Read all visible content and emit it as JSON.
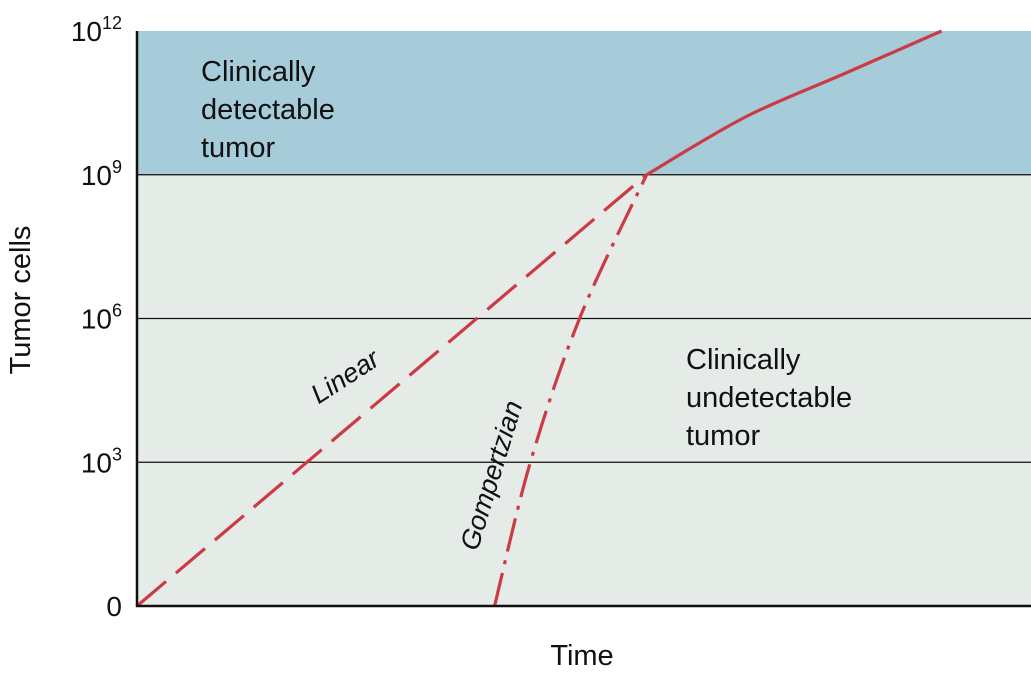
{
  "chart_data": {
    "type": "line",
    "xlabel": "Time",
    "ylabel": "Tumor cells",
    "y_scale": "log",
    "y_ticks": [
      {
        "base": "0",
        "exp": ""
      },
      {
        "base": "10",
        "exp": "3"
      },
      {
        "base": "10",
        "exp": "6"
      },
      {
        "base": "10",
        "exp": "9"
      },
      {
        "base": "10",
        "exp": "12"
      }
    ],
    "y_tick_exponents": [
      0,
      3,
      6,
      9,
      12
    ],
    "ylim_exponent": [
      0,
      12
    ],
    "grid": true,
    "regions": [
      {
        "lines": [
          "Clinically",
          "detectable",
          "tumor"
        ],
        "from_exponent": 9,
        "to_exponent": 12,
        "color": "#a6ccd9"
      },
      {
        "lines": [
          "Clinically",
          "undetectable",
          "tumor"
        ],
        "from_exponent": 0,
        "to_exponent": 9,
        "color": "#e5ebe6"
      }
    ],
    "series": [
      {
        "name": "Linear",
        "style": "dashed",
        "color": "#cc3b45",
        "points": [
          [
            0,
            0
          ],
          [
            0.57,
            9
          ]
        ]
      },
      {
        "name": "Gompertzian",
        "style": "dash-dot",
        "color": "#cc3b45",
        "points": [
          [
            0.4,
            0
          ],
          [
            0.44,
            3
          ],
          [
            0.495,
            6
          ],
          [
            0.57,
            9
          ]
        ]
      },
      {
        "name": "",
        "style": "solid",
        "color": "#cc3b45",
        "points": [
          [
            0.57,
            9
          ],
          [
            0.68,
            10.2
          ],
          [
            0.79,
            11.1
          ],
          [
            0.9,
            12
          ]
        ]
      }
    ]
  }
}
